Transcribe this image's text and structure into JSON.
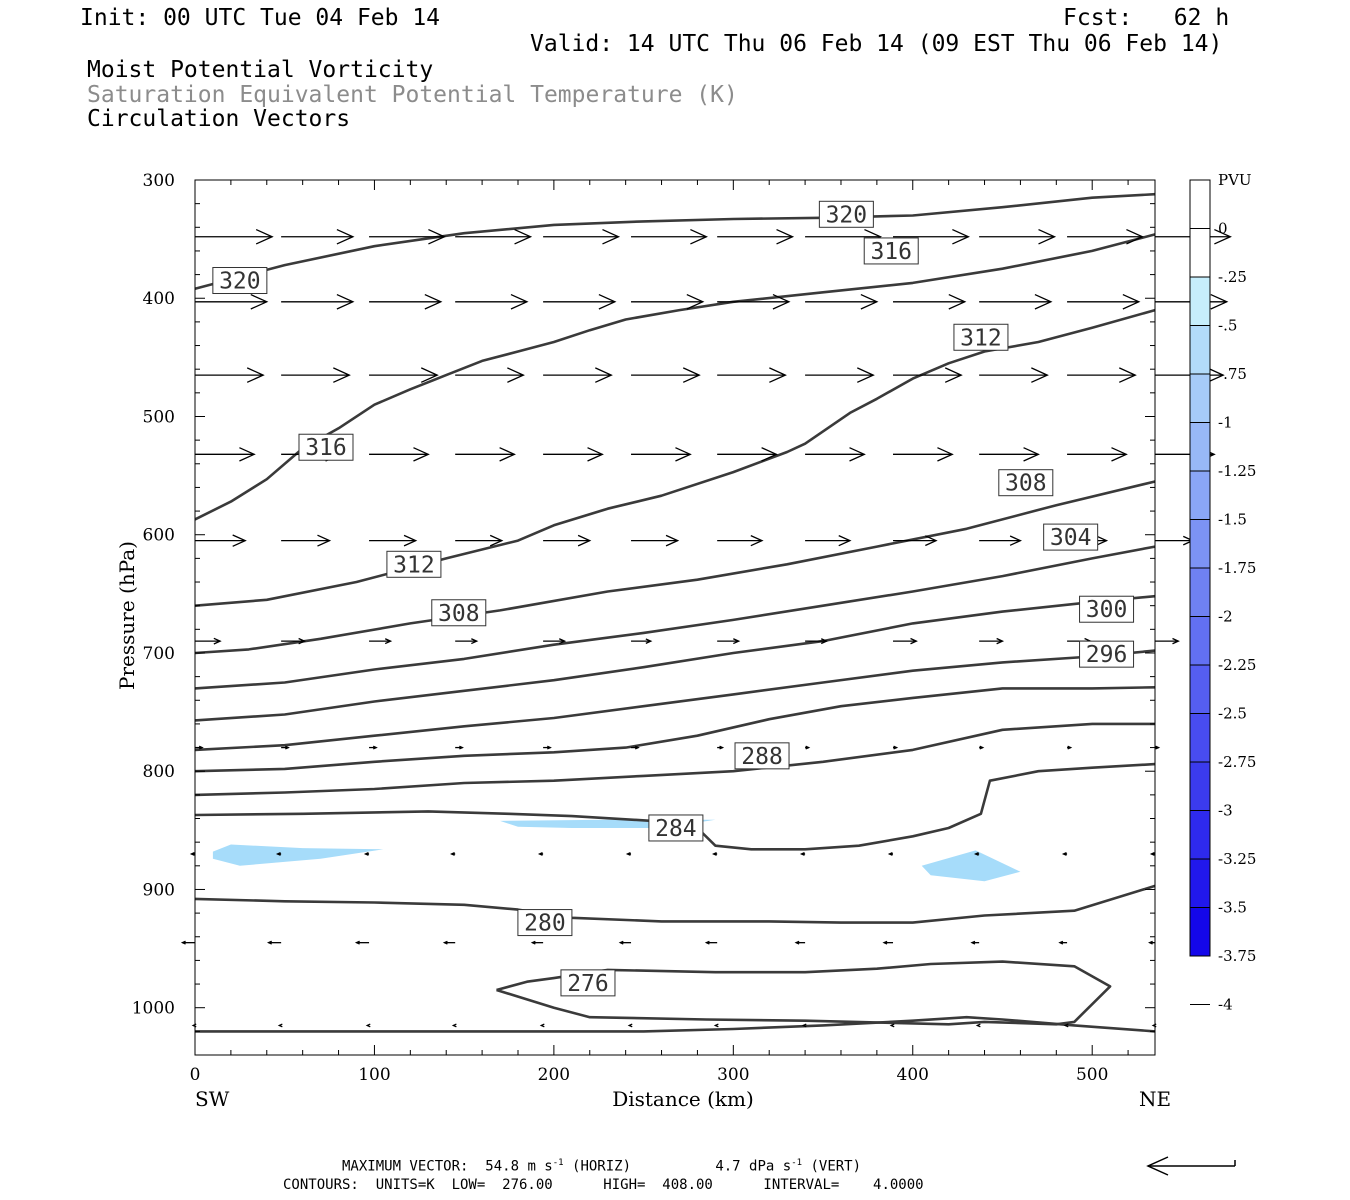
{
  "header": {
    "init": "Init: 00 UTC Tue 04 Feb 14",
    "fcst": "Fcst:   62 h",
    "valid": "Valid: 14 UTC Thu 06 Feb 14 (09 EST Thu 06 Feb 14)",
    "field1": "Moist Potential Vorticity",
    "field2": "Saturation Equivalent Potential Temperature (K)",
    "field3": "Circulation Vectors"
  },
  "footer": {
    "max_vector_label": "MAXIMUM VECTOR:",
    "max_horiz": "54.8 m s",
    "horiz_tag": "(HORIZ)",
    "max_vert": "4.7 dPa s",
    "vert_tag": "(VERT)",
    "exp": "-1",
    "contours": "CONTOURS:  UNITS=K  LOW=  276.00      HIGH=  408.00      INTERVAL=    4.0000"
  },
  "colors": {
    "contour": "#3a3a3a",
    "pv_fill": "#a6dcfa",
    "pv_scale": [
      "#ffffff",
      "#ffffff",
      "#c6eefc",
      "#b2dbfa",
      "#a6cbf8",
      "#98b8f7",
      "#8aa6f6",
      "#7c93f4",
      "#6f81f3",
      "#6270f2",
      "#555ef1",
      "#484cf0",
      "#3b3bee",
      "#2e2aed",
      "#2118ec",
      "#1407ea"
    ]
  },
  "chart_data": {
    "type": "contour",
    "xlabel": "Distance (km)",
    "ylabel": "Pressure (hPa)",
    "xlim": [
      0,
      535
    ],
    "ylim": [
      300,
      1040
    ],
    "y_scale": "linear, inverted",
    "xticks": [
      0,
      100,
      200,
      300,
      400,
      500
    ],
    "yticks": [
      300,
      400,
      500,
      600,
      700,
      800,
      900,
      1000
    ],
    "x_end_labels": {
      "left": "SW",
      "right": "NE"
    },
    "colorbar": {
      "title": "PVU",
      "labels": [
        "0",
        "-.25",
        "-.5",
        "-.75",
        "-1",
        "-1.25",
        "-1.5",
        "-1.75",
        "-2",
        "-2.25",
        "-2.5",
        "-2.75",
        "-3",
        "-3.25",
        "-3.5",
        "-3.75",
        "-4"
      ]
    },
    "contour_labels": [
      {
        "text": "320",
        "x": 363,
        "y": 329
      },
      {
        "text": "320",
        "x": 25,
        "y": 385
      },
      {
        "text": "316",
        "x": 388,
        "y": 360
      },
      {
        "text": "312",
        "x": 438,
        "y": 433
      },
      {
        "text": "316",
        "x": 73,
        "y": 526
      },
      {
        "text": "308",
        "x": 463,
        "y": 556
      },
      {
        "text": "304",
        "x": 488,
        "y": 602
      },
      {
        "text": "312",
        "x": 122,
        "y": 625
      },
      {
        "text": "308",
        "x": 147,
        "y": 666
      },
      {
        "text": "300",
        "x": 508,
        "y": 663
      },
      {
        "text": "296",
        "x": 508,
        "y": 701
      },
      {
        "text": "288",
        "x": 316,
        "y": 787
      },
      {
        "text": "284",
        "x": 268,
        "y": 848
      },
      {
        "text": "280",
        "x": 195,
        "y": 928
      },
      {
        "text": "276",
        "x": 219,
        "y": 979
      }
    ],
    "contours": [
      [
        [
          0,
          392
        ],
        [
          50,
          372
        ],
        [
          100,
          356
        ],
        [
          150,
          345
        ],
        [
          200,
          338
        ],
        [
          250,
          335
        ],
        [
          300,
          333
        ],
        [
          350,
          332
        ],
        [
          400,
          330
        ],
        [
          450,
          323
        ],
        [
          500,
          315
        ],
        [
          535,
          312
        ]
      ],
      [
        [
          0,
          587
        ],
        [
          20,
          572
        ],
        [
          40,
          553
        ],
        [
          60,
          527
        ],
        [
          80,
          510
        ],
        [
          100,
          490
        ],
        [
          120,
          477
        ],
        [
          140,
          465
        ],
        [
          160,
          453
        ],
        [
          180,
          445
        ],
        [
          200,
          437
        ],
        [
          220,
          427
        ],
        [
          240,
          418
        ],
        [
          270,
          410
        ],
        [
          300,
          403
        ],
        [
          350,
          395
        ],
        [
          400,
          387
        ],
        [
          450,
          375
        ],
        [
          500,
          360
        ],
        [
          535,
          346
        ]
      ],
      [
        [
          0,
          660
        ],
        [
          40,
          655
        ],
        [
          90,
          640
        ],
        [
          140,
          620
        ],
        [
          180,
          605
        ],
        [
          200,
          592
        ],
        [
          230,
          578
        ],
        [
          260,
          567
        ],
        [
          300,
          547
        ],
        [
          330,
          530
        ],
        [
          340,
          523
        ],
        [
          365,
          497
        ],
        [
          380,
          485
        ],
        [
          400,
          468
        ],
        [
          420,
          455
        ],
        [
          440,
          445
        ],
        [
          470,
          437
        ],
        [
          500,
          425
        ],
        [
          535,
          410
        ]
      ],
      [
        [
          0,
          700
        ],
        [
          30,
          697
        ],
        [
          70,
          688
        ],
        [
          120,
          675
        ],
        [
          170,
          664
        ],
        [
          230,
          648
        ],
        [
          280,
          638
        ],
        [
          330,
          625
        ],
        [
          380,
          610
        ],
        [
          430,
          595
        ],
        [
          480,
          575
        ],
        [
          535,
          555
        ]
      ],
      [
        [
          0,
          730
        ],
        [
          50,
          725
        ],
        [
          100,
          714
        ],
        [
          150,
          705
        ],
        [
          200,
          693
        ],
        [
          250,
          683
        ],
        [
          300,
          672
        ],
        [
          350,
          660
        ],
        [
          400,
          648
        ],
        [
          450,
          635
        ],
        [
          500,
          620
        ],
        [
          535,
          610
        ]
      ],
      [
        [
          0,
          757
        ],
        [
          50,
          752
        ],
        [
          100,
          741
        ],
        [
          150,
          732
        ],
        [
          200,
          723
        ],
        [
          250,
          712
        ],
        [
          300,
          700
        ],
        [
          350,
          690
        ],
        [
          400,
          675
        ],
        [
          450,
          665
        ],
        [
          500,
          657
        ],
        [
          535,
          652
        ]
      ],
      [
        [
          0,
          782
        ],
        [
          50,
          778
        ],
        [
          100,
          770
        ],
        [
          150,
          762
        ],
        [
          200,
          755
        ],
        [
          250,
          745
        ],
        [
          300,
          735
        ],
        [
          350,
          725
        ],
        [
          400,
          715
        ],
        [
          450,
          708
        ],
        [
          500,
          703
        ],
        [
          535,
          698
        ]
      ],
      [
        [
          0,
          800
        ],
        [
          50,
          798
        ],
        [
          100,
          792
        ],
        [
          150,
          787
        ],
        [
          200,
          784
        ],
        [
          240,
          780
        ],
        [
          280,
          770
        ],
        [
          320,
          756
        ],
        [
          360,
          745
        ],
        [
          400,
          738
        ],
        [
          450,
          730
        ],
        [
          500,
          730
        ],
        [
          535,
          729
        ]
      ],
      [
        [
          0,
          820
        ],
        [
          50,
          818
        ],
        [
          100,
          815
        ],
        [
          150,
          810
        ],
        [
          200,
          808
        ],
        [
          250,
          804
        ],
        [
          300,
          800
        ],
        [
          350,
          792
        ],
        [
          400,
          782
        ],
        [
          450,
          765
        ],
        [
          500,
          760
        ],
        [
          535,
          760
        ]
      ],
      [
        [
          0,
          837
        ],
        [
          60,
          836
        ],
        [
          130,
          834
        ],
        [
          175,
          836
        ],
        [
          210,
          838
        ],
        [
          255,
          842
        ],
        [
          280,
          848
        ],
        [
          290,
          863
        ],
        [
          310,
          866
        ],
        [
          340,
          866
        ],
        [
          370,
          863
        ],
        [
          400,
          855
        ],
        [
          420,
          848
        ],
        [
          438,
          836
        ],
        [
          443,
          808
        ],
        [
          470,
          800
        ],
        [
          500,
          797
        ],
        [
          535,
          794
        ]
      ],
      [
        [
          0,
          908
        ],
        [
          50,
          910
        ],
        [
          100,
          911
        ],
        [
          150,
          913
        ],
        [
          180,
          917
        ],
        [
          210,
          924
        ],
        [
          260,
          927
        ],
        [
          320,
          927
        ],
        [
          360,
          928
        ],
        [
          400,
          928
        ],
        [
          440,
          922
        ],
        [
          490,
          918
        ],
        [
          535,
          897
        ]
      ],
      [
        [
          168,
          985
        ],
        [
          185,
          978
        ],
        [
          200,
          975
        ],
        [
          230,
          968
        ],
        [
          290,
          970
        ],
        [
          340,
          970
        ],
        [
          380,
          967
        ],
        [
          410,
          963
        ],
        [
          450,
          961
        ],
        [
          490,
          965
        ],
        [
          510,
          982
        ],
        [
          490,
          1012
        ],
        [
          480,
          1014
        ],
        [
          440,
          1012
        ],
        [
          420,
          1014
        ],
        [
          340,
          1011
        ],
        [
          285,
          1010
        ],
        [
          220,
          1008
        ],
        [
          200,
          1000
        ],
        [
          168,
          985
        ]
      ],
      [
        [
          0,
          1020
        ],
        [
          150,
          1020
        ],
        [
          200,
          1020
        ],
        [
          250,
          1020
        ],
        [
          300,
          1018
        ],
        [
          350,
          1015
        ],
        [
          400,
          1011
        ],
        [
          430,
          1008
        ],
        [
          450,
          1010
        ],
        [
          490,
          1015
        ],
        [
          535,
          1020
        ]
      ]
    ],
    "pv_regions": [
      [
        [
          10,
          868
        ],
        [
          20,
          862
        ],
        [
          60,
          865
        ],
        [
          105,
          866
        ],
        [
          70,
          874
        ],
        [
          25,
          880
        ],
        [
          10,
          874
        ]
      ],
      [
        [
          170,
          842
        ],
        [
          230,
          841
        ],
        [
          290,
          841
        ],
        [
          260,
          848
        ],
        [
          210,
          848
        ],
        [
          180,
          847
        ]
      ],
      [
        [
          405,
          880
        ],
        [
          435,
          867
        ],
        [
          460,
          885
        ],
        [
          440,
          893
        ],
        [
          410,
          888
        ]
      ]
    ],
    "vectors": {
      "p_levels": [
        348,
        403,
        465,
        532,
        605,
        690,
        780,
        870,
        945,
        1015
      ],
      "x_positions": [
        0,
        48,
        97,
        145,
        194,
        243,
        291,
        340,
        389,
        437,
        486,
        535
      ],
      "u_km": [
        [
          43,
          40,
          42,
          42,
          42,
          42,
          42,
          42,
          42,
          42,
          42,
          42
        ],
        [
          40,
          40,
          40,
          40,
          40,
          40,
          40,
          40,
          40,
          40,
          40,
          40
        ],
        [
          38,
          38,
          38,
          38,
          38,
          38,
          38,
          38,
          38,
          38,
          38,
          38
        ],
        [
          33,
          33,
          33,
          33,
          33,
          33,
          33,
          33,
          33,
          33,
          33,
          33
        ],
        [
          28,
          27,
          26,
          26,
          26,
          26,
          25,
          25,
          24,
          23,
          22,
          21
        ],
        [
          14,
          13,
          12,
          12,
          12,
          11,
          12,
          12,
          13,
          13,
          13,
          13
        ],
        [
          4,
          4,
          4,
          4,
          4,
          4,
          3,
          2,
          2,
          2,
          2,
          2
        ],
        [
          -2,
          -2,
          -2,
          -2,
          -2,
          -2,
          -2,
          -2,
          -2,
          -2,
          -2,
          -2
        ],
        [
          -7,
          -7,
          -7,
          -6,
          -6,
          -6,
          -6,
          -5,
          -5,
          -4,
          -4,
          -3
        ],
        [
          -1,
          -1,
          -1,
          -1,
          -1,
          -1,
          -1,
          -1,
          -1,
          -1,
          -1,
          -1
        ]
      ]
    }
  }
}
